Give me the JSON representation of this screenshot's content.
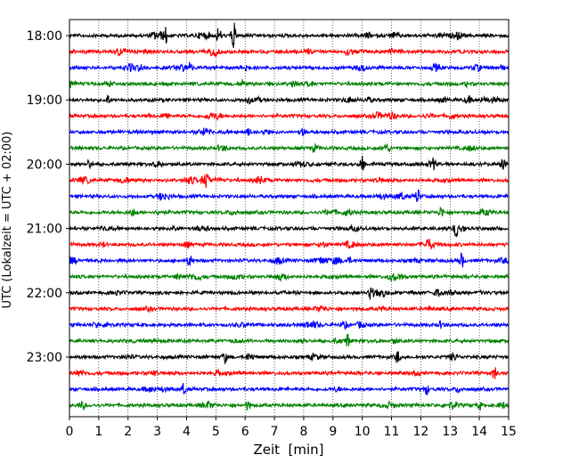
{
  "chart_data": {
    "type": "line",
    "title": "",
    "xlabel": "Zeit  [min]",
    "ylabel": "UTC (Lokalzeit = UTC + 02:00)",
    "xlim": [
      0,
      15
    ],
    "x_ticks": [
      0,
      1,
      2,
      3,
      4,
      5,
      6,
      7,
      8,
      9,
      10,
      11,
      12,
      13,
      14,
      15
    ],
    "x_tick_labels": [
      "0",
      "1",
      "2",
      "3",
      "4",
      "5",
      "6",
      "7",
      "8",
      "9",
      "10",
      "11",
      "12",
      "13",
      "14",
      "15"
    ],
    "y_tick_labels": [
      "18:00",
      "19:00",
      "20:00",
      "21:00",
      "22:00",
      "23:00"
    ],
    "y_tick_rows": [
      0,
      4,
      8,
      12,
      16,
      20
    ],
    "grid": "vertical dotted",
    "trace_colors": [
      "#000000",
      "#ff0000",
      "#0000ff",
      "#008000"
    ],
    "trace_count": 24,
    "trace_minutes_each": 15,
    "start_time": "18:00",
    "events": [
      {
        "row": 0,
        "minute": 5.6,
        "amp": 1.0
      },
      {
        "row": 0,
        "minute": 5.1,
        "amp": 0.6
      },
      {
        "row": 0,
        "minute": 3.3,
        "amp": 0.45
      },
      {
        "row": 1,
        "minute": 11.3,
        "amp": 0.35
      },
      {
        "row": 2,
        "minute": 4.1,
        "amp": 0.4
      },
      {
        "row": 3,
        "minute": 5.9,
        "amp": 0.3
      },
      {
        "row": 4,
        "minute": 1.3,
        "amp": 0.35
      },
      {
        "row": 5,
        "minute": 3.3,
        "amp": 0.35
      },
      {
        "row": 8,
        "minute": 10.0,
        "amp": 0.55
      },
      {
        "row": 8,
        "minute": 12.4,
        "amp": 0.45
      },
      {
        "row": 8,
        "minute": 14.8,
        "amp": 0.5
      },
      {
        "row": 9,
        "minute": 4.7,
        "amp": 0.45
      },
      {
        "row": 10,
        "minute": 11.9,
        "amp": 0.55
      },
      {
        "row": 11,
        "minute": 12.7,
        "amp": 0.4
      },
      {
        "row": 12,
        "minute": 13.2,
        "amp": 0.55
      },
      {
        "row": 14,
        "minute": 4.1,
        "amp": 0.45
      },
      {
        "row": 14,
        "minute": 13.4,
        "amp": 0.5
      },
      {
        "row": 16,
        "minute": 10.3,
        "amp": 0.5
      },
      {
        "row": 18,
        "minute": 1.3,
        "amp": 0.3
      },
      {
        "row": 19,
        "minute": 9.5,
        "amp": 0.4
      },
      {
        "row": 20,
        "minute": 5.3,
        "amp": 0.4
      },
      {
        "row": 20,
        "minute": 11.2,
        "amp": 0.45
      },
      {
        "row": 21,
        "minute": 14.5,
        "amp": 0.5
      },
      {
        "row": 22,
        "minute": 3.9,
        "amp": 0.4
      },
      {
        "row": 22,
        "minute": 12.2,
        "amp": 0.35
      },
      {
        "row": 23,
        "minute": 6.1,
        "amp": 0.35
      },
      {
        "row": 23,
        "minute": 14.0,
        "amp": 0.3
      }
    ]
  }
}
